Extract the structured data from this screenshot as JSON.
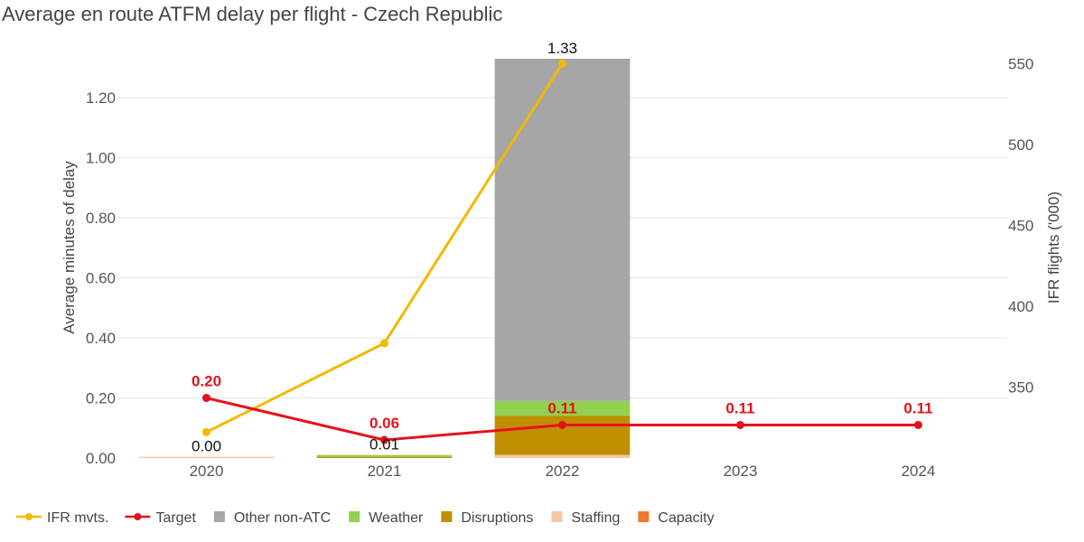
{
  "chart_data": {
    "type": "bar",
    "title": "Average en route ATFM delay per flight - Czech Republic",
    "ylabel": "Average minutes of delay",
    "y2label": "IFR flights ('000)",
    "categories": [
      "2020",
      "2021",
      "2022",
      "2023",
      "2024"
    ],
    "ylim": [
      0,
      1.33
    ],
    "yticks": [
      "0.00",
      "0.20",
      "0.40",
      "0.60",
      "0.80",
      "1.00",
      "1.20"
    ],
    "y2lim": [
      306,
      553
    ],
    "y2ticks": [
      "350",
      "400",
      "450",
      "500",
      "550"
    ],
    "stacked_series": [
      {
        "name": "Capacity",
        "color": "#f07a2a",
        "values": [
          0,
          0,
          0,
          null,
          null
        ]
      },
      {
        "name": "Staffing",
        "color": "#f6c8a6",
        "values": [
          0.004,
          0,
          0.01,
          null,
          null
        ]
      },
      {
        "name": "Disruptions",
        "color": "#bf8f00",
        "values": [
          0,
          0.004,
          0.13,
          null,
          null
        ]
      },
      {
        "name": "Weather",
        "color": "#92d050",
        "values": [
          0,
          0.006,
          0.05,
          null,
          null
        ]
      },
      {
        "name": "Other non-ATC",
        "color": "#a6a6a6",
        "values": [
          0,
          0,
          1.14,
          null,
          null
        ]
      }
    ],
    "bar_totals": [
      "0.00",
      "0.01",
      "1.33",
      null,
      null
    ],
    "lines": [
      {
        "name": "IFR mvts.",
        "color": "#f5b800",
        "axis": "right",
        "values": [
          322,
          377,
          550,
          null,
          null
        ],
        "labels": null
      },
      {
        "name": "Target",
        "color": "#e8101a",
        "axis": "left",
        "values": [
          0.2,
          0.06,
          0.11,
          0.11,
          0.11
        ],
        "labels": [
          "0.20",
          "0.06",
          "0.11",
          "0.11",
          "0.11"
        ]
      }
    ],
    "legend": {
      "position": "bottom-left",
      "items": [
        {
          "name": "IFR mvts.",
          "kind": "line",
          "color": "#f5b800"
        },
        {
          "name": "Target",
          "kind": "line",
          "color": "#e8101a"
        },
        {
          "name": "Other non-ATC",
          "kind": "box",
          "color": "#a6a6a6"
        },
        {
          "name": "Weather",
          "kind": "box",
          "color": "#92d050"
        },
        {
          "name": "Disruptions",
          "kind": "box",
          "color": "#bf8f00"
        },
        {
          "name": "Staffing",
          "kind": "box",
          "color": "#f6c8a6"
        },
        {
          "name": "Capacity",
          "kind": "box",
          "color": "#f07a2a"
        }
      ]
    },
    "grid": true
  }
}
